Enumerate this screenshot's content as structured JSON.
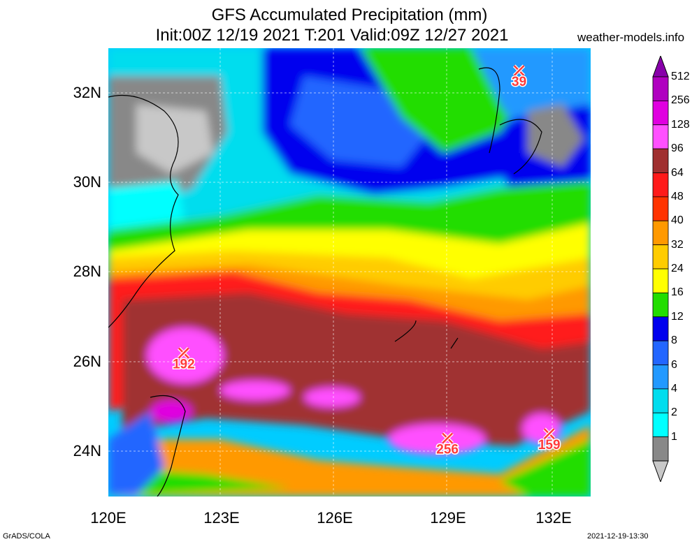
{
  "title": {
    "line1": "GFS Accumulated Precipitation (mm)",
    "line2": "Init:00Z 12/19 2021 T:201 Valid:09Z 12/27 2021"
  },
  "site": "weather-models.info",
  "map": {
    "lat_labels": [
      "32N",
      "30N",
      "28N",
      "26N",
      "24N"
    ],
    "lon_labels": [
      "120E",
      "123E",
      "126E",
      "129E",
      "132E"
    ],
    "extent": {
      "lon": [
        120,
        132.8
      ],
      "lat": [
        23,
        33
      ]
    },
    "markers": [
      {
        "value": "39",
        "lon": 130.9,
        "lat": 32.5
      },
      {
        "value": "192",
        "lon": 122.0,
        "lat": 26.2
      },
      {
        "value": "256",
        "lon": 129.0,
        "lat": 24.3
      },
      {
        "value": "159",
        "lon": 131.7,
        "lat": 24.4
      }
    ]
  },
  "colorbar": {
    "levels": [
      "512",
      "256",
      "128",
      "96",
      "64",
      "48",
      "40",
      "32",
      "24",
      "16",
      "12",
      "8",
      "6",
      "4",
      "2",
      "1"
    ],
    "colors": [
      "#8800aa",
      "#b000c0",
      "#e000e0",
      "#ff50ff",
      "#a03030",
      "#ff1a1a",
      "#ff3300",
      "#ff9900",
      "#ffcc00",
      "#ffff00",
      "#22dd00",
      "#0000ee",
      "#2266ff",
      "#2299ff",
      "#00ddee",
      "#00ffff",
      "#888888",
      "#c8c8c8"
    ]
  },
  "footer": {
    "left": "GrADS/COLA",
    "right": "2021-12-19-13:30"
  }
}
